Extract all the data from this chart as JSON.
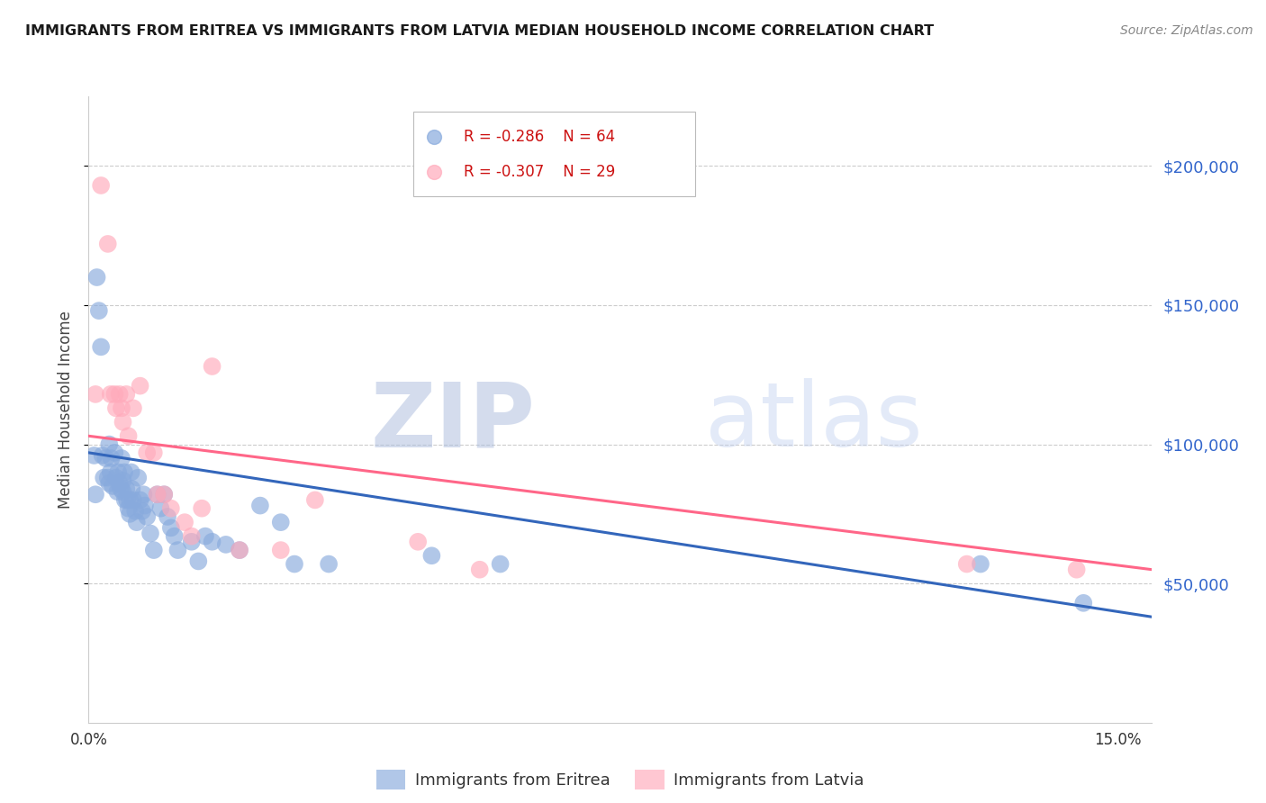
{
  "title": "IMMIGRANTS FROM ERITREA VS IMMIGRANTS FROM LATVIA MEDIAN HOUSEHOLD INCOME CORRELATION CHART",
  "source": "Source: ZipAtlas.com",
  "ylabel": "Median Household Income",
  "y_tick_values": [
    50000,
    100000,
    150000,
    200000
  ],
  "ylim": [
    0,
    225000
  ],
  "xlim": [
    0.0,
    0.155
  ],
  "series1_label": "Immigrants from Eritrea",
  "series1_color": "#88AADD",
  "series1_R": "R = -0.286",
  "series1_N": "N = 64",
  "series1_line_color": "#3366BB",
  "series2_label": "Immigrants from Latvia",
  "series2_color": "#FFAABB",
  "series2_R": "R = -0.307",
  "series2_N": "N = 29",
  "series2_line_color": "#FF6688",
  "background_color": "#FFFFFF",
  "grid_color": "#CCCCCC",
  "watermark_zip": "ZIP",
  "watermark_atlas": "atlas",
  "watermark_color_zip": "#AABBDD",
  "watermark_color_atlas": "#BBCCEE",
  "eritrea_x": [
    0.0008,
    0.001,
    0.0012,
    0.0015,
    0.0018,
    0.002,
    0.0022,
    0.0025,
    0.0028,
    0.003,
    0.003,
    0.0032,
    0.0033,
    0.0035,
    0.0038,
    0.004,
    0.0042,
    0.0043,
    0.0045,
    0.0047,
    0.0048,
    0.005,
    0.005,
    0.0052,
    0.0053,
    0.0055,
    0.0056,
    0.0058,
    0.006,
    0.006,
    0.0062,
    0.0063,
    0.0065,
    0.0068,
    0.007,
    0.0072,
    0.0075,
    0.0078,
    0.008,
    0.0082,
    0.0085,
    0.009,
    0.0095,
    0.01,
    0.0105,
    0.011,
    0.0115,
    0.012,
    0.0125,
    0.013,
    0.015,
    0.016,
    0.017,
    0.018,
    0.02,
    0.022,
    0.025,
    0.028,
    0.03,
    0.035,
    0.05,
    0.06,
    0.13,
    0.145
  ],
  "eritrea_y": [
    96000,
    82000,
    160000,
    148000,
    135000,
    96000,
    88000,
    95000,
    88000,
    100000,
    86000,
    90000,
    95000,
    85000,
    97000,
    88000,
    83000,
    90000,
    86000,
    84000,
    95000,
    87000,
    83000,
    90000,
    80000,
    84000,
    80000,
    77000,
    80000,
    75000,
    90000,
    84000,
    80000,
    76000,
    72000,
    88000,
    80000,
    76000,
    82000,
    78000,
    74000,
    68000,
    62000,
    82000,
    77000,
    82000,
    74000,
    70000,
    67000,
    62000,
    65000,
    58000,
    67000,
    65000,
    64000,
    62000,
    78000,
    72000,
    57000,
    57000,
    60000,
    57000,
    57000,
    43000
  ],
  "latvia_x": [
    0.001,
    0.0018,
    0.0028,
    0.0032,
    0.0038,
    0.004,
    0.0045,
    0.0048,
    0.005,
    0.0055,
    0.0058,
    0.0065,
    0.0075,
    0.0085,
    0.0095,
    0.01,
    0.011,
    0.012,
    0.014,
    0.015,
    0.0165,
    0.018,
    0.022,
    0.028,
    0.033,
    0.048,
    0.057,
    0.128,
    0.144
  ],
  "latvia_y": [
    118000,
    193000,
    172000,
    118000,
    118000,
    113000,
    118000,
    113000,
    108000,
    118000,
    103000,
    113000,
    121000,
    97000,
    97000,
    82000,
    82000,
    77000,
    72000,
    67000,
    77000,
    128000,
    62000,
    62000,
    80000,
    65000,
    55000,
    57000,
    55000
  ],
  "trendline_eritrea_x0": 0.0,
  "trendline_eritrea_y0": 97000,
  "trendline_eritrea_x1": 0.155,
  "trendline_eritrea_y1": 38000,
  "trendline_latvia_x0": 0.0,
  "trendline_latvia_y0": 103000,
  "trendline_latvia_x1": 0.155,
  "trendline_latvia_y1": 55000
}
